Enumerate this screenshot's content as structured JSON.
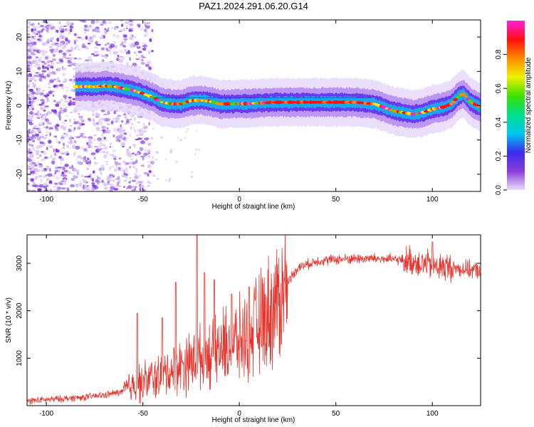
{
  "title": "PAZ1.2024.291.06.20.G14",
  "chart_data": [
    {
      "type": "heatmap",
      "xlabel": "Height of straight line (km)",
      "ylabel": "Frequency (Hz)",
      "xlim": [
        -110,
        125
      ],
      "ylim": [
        -25,
        25
      ],
      "xticks": [
        -100,
        -50,
        0,
        50,
        100
      ],
      "yticks": [
        -20,
        -10,
        0,
        10,
        20
      ],
      "colorbar": {
        "label": "Normalized spectral amplitude",
        "ticks": [
          "0.0",
          "0.2",
          "0.4",
          "0.6",
          "0.8"
        ],
        "range": [
          0,
          1
        ],
        "colormap": "rainbow",
        "stops": [
          "#eaddfb",
          "#8b3dd8",
          "#3a2cf0",
          "#00c8f0",
          "#00e08a",
          "#3ce000",
          "#f0f000",
          "#ff8a00",
          "#ff1010",
          "#ff20e0"
        ]
      },
      "ridge": {
        "x": [
          -85,
          -80,
          -75,
          -70,
          -65,
          -60,
          -55,
          -50,
          -45,
          -40,
          -35,
          -30,
          -25,
          -20,
          -15,
          -10,
          -5,
          0,
          5,
          10,
          20,
          30,
          40,
          50,
          60,
          70,
          75,
          80,
          85,
          90,
          95,
          100,
          105,
          110,
          113,
          116,
          120,
          125
        ],
        "y": [
          5.5,
          5.6,
          5.5,
          5.8,
          5.6,
          5.0,
          4.5,
          3.5,
          2.5,
          1.0,
          0.5,
          0.5,
          1.5,
          1.6,
          1.2,
          0.5,
          0.5,
          0.6,
          0.6,
          0.8,
          1.0,
          1.0,
          1.0,
          1.0,
          1.0,
          0.5,
          -0.5,
          -1.5,
          -2.0,
          -2.5,
          -2.0,
          -1.0,
          -0.5,
          0.5,
          2.5,
          3.5,
          1.0,
          -0.5
        ]
      }
    },
    {
      "type": "line",
      "xlabel": "Height of straight line (km)",
      "ylabel": "SNR (10 * v/v)",
      "xlim": [
        -110,
        125
      ],
      "ylim": [
        0,
        3600
      ],
      "xticks": [
        -100,
        -50,
        0,
        50,
        100
      ],
      "yticks": [
        1000,
        2000,
        3000
      ],
      "series": [
        {
          "color": "#e8342c",
          "trend": {
            "x": [
              -110,
              -90,
              -80,
              -70,
              -60,
              -55,
              -50,
              -40,
              -30,
              -20,
              -10,
              0,
              10,
              20,
              25,
              30,
              40,
              50,
              60,
              70,
              80,
              90,
              100,
              110,
              125
            ],
            "y": [
              100,
              150,
              180,
              220,
              300,
              450,
              500,
              650,
              850,
              1000,
              1200,
              1350,
              1700,
              2200,
              2600,
              2900,
              3050,
              3080,
              3100,
              3100,
              3080,
              3050,
              2950,
              2900,
              2850
            ]
          },
          "spikes": [
            {
              "x": -53,
              "y": 1950
            },
            {
              "x": -40,
              "y": 1850
            },
            {
              "x": -33,
              "y": 2600
            },
            {
              "x": -22,
              "y": 3600
            },
            {
              "x": -18,
              "y": 2800
            },
            {
              "x": -13,
              "y": 2650
            },
            {
              "x": -4,
              "y": 2350
            },
            {
              "x": 5,
              "y": 2500
            },
            {
              "x": 100,
              "y": 3450
            }
          ]
        }
      ]
    }
  ]
}
